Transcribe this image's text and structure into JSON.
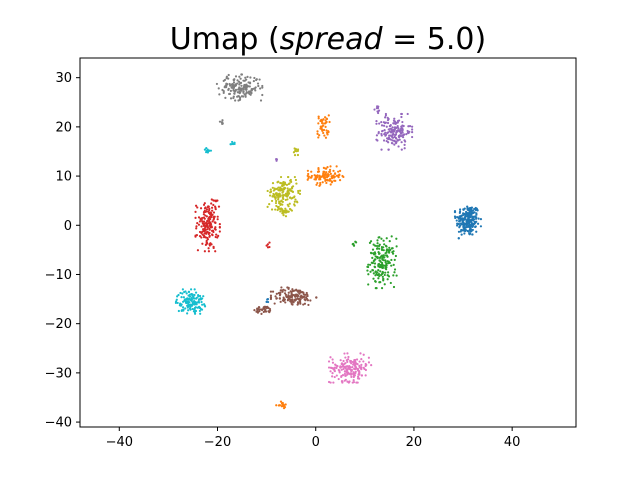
{
  "chart_data": {
    "type": "scatter",
    "title": "Umap (spread = 5.0)",
    "title_parts": {
      "prefix": "Umap (",
      "param": "spread",
      "op": " = ",
      "value": "5.0",
      "suffix": ")"
    },
    "xlabel": "",
    "ylabel": "",
    "xlim": [
      -48,
      53
    ],
    "ylim": [
      -41,
      34
    ],
    "xticks": [
      -40,
      -20,
      0,
      20,
      40
    ],
    "yticks": [
      -40,
      -30,
      -20,
      -10,
      0,
      10,
      20,
      30
    ],
    "grid": false,
    "legend": "none",
    "clusters": [
      {
        "color": "#1f77b4",
        "blobs": [
          {
            "cx": 31,
            "cy": 1,
            "sx": 1.6,
            "sy": 2.2,
            "n": 220
          },
          {
            "cx": -10,
            "cy": -15.5,
            "sx": 0.4,
            "sy": 0.3,
            "n": 4
          }
        ]
      },
      {
        "color": "#ff7f0e",
        "blobs": [
          {
            "cx": 2,
            "cy": 10,
            "sx": 2.2,
            "sy": 1.2,
            "n": 110
          },
          {
            "cx": 1.5,
            "cy": 20,
            "sx": 0.8,
            "sy": 1.6,
            "n": 45
          },
          {
            "cx": -7,
            "cy": -36.5,
            "sx": 0.8,
            "sy": 0.4,
            "n": 18
          }
        ]
      },
      {
        "color": "#2ca02c",
        "blobs": [
          {
            "cx": 13.5,
            "cy": -7.5,
            "sx": 1.8,
            "sy": 3.2,
            "n": 180
          },
          {
            "cx": 8,
            "cy": -3.8,
            "sx": 0.4,
            "sy": 0.3,
            "n": 6
          }
        ]
      },
      {
        "color": "#d62728",
        "blobs": [
          {
            "cx": -22,
            "cy": 0,
            "sx": 1.5,
            "sy": 3.2,
            "n": 170
          },
          {
            "cx": -20.5,
            "cy": 5,
            "sx": 0.5,
            "sy": 0.4,
            "n": 8
          },
          {
            "cx": -9.5,
            "cy": -4,
            "sx": 0.3,
            "sy": 0.4,
            "n": 5
          }
        ]
      },
      {
        "color": "#9467bd",
        "blobs": [
          {
            "cx": 16,
            "cy": 19,
            "sx": 2.2,
            "sy": 2.2,
            "n": 160
          },
          {
            "cx": 12.5,
            "cy": 23.5,
            "sx": 0.4,
            "sy": 0.6,
            "n": 10
          },
          {
            "cx": -8,
            "cy": 13.5,
            "sx": 0.2,
            "sy": 0.3,
            "n": 3
          }
        ]
      },
      {
        "color": "#8c564b",
        "blobs": [
          {
            "cx": -4.5,
            "cy": -14.5,
            "sx": 2.8,
            "sy": 1.2,
            "n": 150
          },
          {
            "cx": -10.5,
            "cy": -17.2,
            "sx": 1.2,
            "sy": 0.5,
            "n": 35
          }
        ]
      },
      {
        "color": "#e377c2",
        "blobs": [
          {
            "cx": 7,
            "cy": -29,
            "sx": 2.6,
            "sy": 1.8,
            "n": 180
          }
        ]
      },
      {
        "color": "#7f7f7f",
        "blobs": [
          {
            "cx": -15.5,
            "cy": 28,
            "sx": 2.8,
            "sy": 1.6,
            "n": 170
          },
          {
            "cx": -19,
            "cy": 21,
            "sx": 0.3,
            "sy": 0.8,
            "n": 6
          }
        ]
      },
      {
        "color": "#bcbd22",
        "blobs": [
          {
            "cx": -6.5,
            "cy": 6.5,
            "sx": 2.0,
            "sy": 2.0,
            "n": 150
          },
          {
            "cx": -6.5,
            "cy": 3,
            "sx": 1.0,
            "sy": 0.7,
            "n": 30
          },
          {
            "cx": -4,
            "cy": 15,
            "sx": 0.4,
            "sy": 0.5,
            "n": 10
          }
        ]
      },
      {
        "color": "#17becf",
        "blobs": [
          {
            "cx": -25.5,
            "cy": -15.5,
            "sx": 1.8,
            "sy": 1.5,
            "n": 140
          },
          {
            "cx": -22,
            "cy": 15.3,
            "sx": 0.4,
            "sy": 0.3,
            "n": 10
          },
          {
            "cx": -17,
            "cy": 16.6,
            "sx": 0.4,
            "sy": 0.3,
            "n": 8
          }
        ]
      }
    ]
  }
}
